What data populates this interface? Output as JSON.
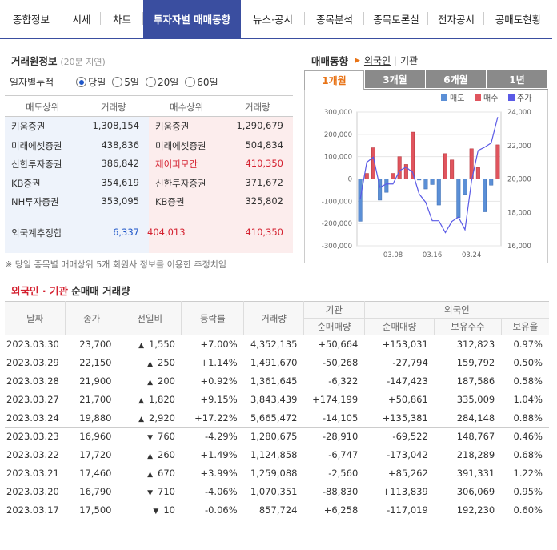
{
  "nav": {
    "tabs": [
      "종합정보",
      "시세",
      "차트",
      "투자자별 매매동향",
      "뉴스·공시",
      "종목분석",
      "종목토론실",
      "전자공시",
      "공매도현황"
    ],
    "active": 3
  },
  "brokers": {
    "title": "거래원정보",
    "delay": "(20분 지연)",
    "period_label": "일자별누적",
    "periods": [
      "당일",
      "5일",
      "20일",
      "60일"
    ],
    "selected_period": "당일",
    "headers": [
      "매도상위",
      "거래량",
      "매수상위",
      "거래량"
    ],
    "rows": [
      {
        "sell_name": "키움증권",
        "sell_vol": "1,308,154",
        "buy_name": "키움증권",
        "buy_vol": "1,290,679",
        "buy_highlight": false
      },
      {
        "sell_name": "미래에셋증권",
        "sell_vol": "438,836",
        "buy_name": "미래에셋증권",
        "buy_vol": "504,834",
        "buy_highlight": false
      },
      {
        "sell_name": "신한투자증권",
        "sell_vol": "386,842",
        "buy_name": "제이피모간",
        "buy_vol": "410,350",
        "buy_highlight": true
      },
      {
        "sell_name": "KB증권",
        "sell_vol": "354,619",
        "buy_name": "신한투자증권",
        "buy_vol": "371,672",
        "buy_highlight": false
      },
      {
        "sell_name": "NH투자증권",
        "sell_vol": "353,095",
        "buy_name": "KB증권",
        "buy_vol": "325,802",
        "buy_highlight": false
      }
    ],
    "foreign": {
      "label": "외국계추정합",
      "sell": "6,337",
      "net": "404,013",
      "buy": "410,350"
    },
    "note": "※ 당일 종목별 매매상위 5개 회원사 정보를 이용한 추정치임"
  },
  "trend": {
    "title": "매매동향",
    "filters": [
      "외국인",
      "기관"
    ],
    "active_filter": "외국인",
    "periods": [
      "1개월",
      "3개월",
      "6개월",
      "1년"
    ],
    "active_period": "1개월"
  },
  "chart_data": {
    "type": "bar",
    "legend": [
      "매도",
      "매수",
      "주가"
    ],
    "colors": {
      "sell": "#5b8fd6",
      "buy": "#e0555e",
      "price": "#5a5ae6"
    },
    "x_ticks": [
      "03.08",
      "03.16",
      "03.24"
    ],
    "y_left": {
      "ticks": [
        "300,000",
        "200,000",
        "100,000",
        "0",
        "-100,000",
        "-200,000",
        "-300,000"
      ],
      "range": [
        -300000,
        300000
      ]
    },
    "y_right": {
      "ticks": [
        "24,000",
        "22,000",
        "20,000",
        "18,000",
        "16,000"
      ],
      "range": [
        16000,
        24000
      ]
    },
    "categories": [
      "02.28",
      "03.02",
      "03.03",
      "03.06",
      "03.07",
      "03.08",
      "03.09",
      "03.10",
      "03.13",
      "03.14",
      "03.15",
      "03.16",
      "03.17",
      "03.20",
      "03.21",
      "03.22",
      "03.23",
      "03.24",
      "03.27",
      "03.28",
      "03.29",
      "03.30"
    ],
    "values": [
      -190000,
      25000,
      140000,
      -95000,
      -60000,
      25000,
      100000,
      65000,
      210000,
      -5000,
      -45000,
      -25000,
      -117019,
      113839,
      85262,
      -173042,
      -69522,
      135381,
      50861,
      -147423,
      -27794,
      153031
    ],
    "price": [
      18800,
      21000,
      21300,
      19500,
      19700,
      19700,
      20500,
      20700,
      20400,
      19100,
      18600,
      17500,
      17500,
      16790,
      17460,
      17720,
      16960,
      19880,
      21700,
      21900,
      22150,
      23700
    ]
  },
  "net": {
    "title_colored": "외국인 · 기관",
    "title_rest": " 순매매 거래량",
    "headers": {
      "date": "날짜",
      "close": "종가",
      "change": "전일비",
      "rate": "등락률",
      "volume": "거래량",
      "inst": "기관",
      "foreign": "외국인",
      "inst_net": "순매매량",
      "for_net": "순매매량",
      "hold": "보유주수",
      "ratio": "보유율"
    },
    "rows": [
      {
        "date": "2023.03.30",
        "close": "23,700",
        "dir": "up",
        "chg": "1,550",
        "rate": "+7.00%",
        "vol": "4,352,135",
        "inst": "+50,664",
        "for": "+153,031",
        "hold": "312,823",
        "ratio": "0.97%"
      },
      {
        "date": "2023.03.29",
        "close": "22,150",
        "dir": "up",
        "chg": "250",
        "rate": "+1.14%",
        "vol": "1,491,670",
        "inst": "-50,268",
        "for": "-27,794",
        "hold": "159,792",
        "ratio": "0.50%"
      },
      {
        "date": "2023.03.28",
        "close": "21,900",
        "dir": "up",
        "chg": "200",
        "rate": "+0.92%",
        "vol": "1,361,645",
        "inst": "-6,322",
        "for": "-147,423",
        "hold": "187,586",
        "ratio": "0.58%"
      },
      {
        "date": "2023.03.27",
        "close": "21,700",
        "dir": "up",
        "chg": "1,820",
        "rate": "+9.15%",
        "vol": "3,843,439",
        "inst": "+174,199",
        "for": "+50,861",
        "hold": "335,009",
        "ratio": "1.04%"
      },
      {
        "date": "2023.03.24",
        "close": "19,880",
        "dir": "up",
        "chg": "2,920",
        "rate": "+17.22%",
        "vol": "5,665,472",
        "inst": "-14,105",
        "for": "+135,381",
        "hold": "284,148",
        "ratio": "0.88%"
      },
      {
        "date": "2023.03.23",
        "close": "16,960",
        "dir": "dn",
        "chg": "760",
        "rate": "-4.29%",
        "vol": "1,280,675",
        "inst": "-28,910",
        "for": "-69,522",
        "hold": "148,767",
        "ratio": "0.46%"
      },
      {
        "date": "2023.03.22",
        "close": "17,720",
        "dir": "up",
        "chg": "260",
        "rate": "+1.49%",
        "vol": "1,124,858",
        "inst": "-6,747",
        "for": "-173,042",
        "hold": "218,289",
        "ratio": "0.68%"
      },
      {
        "date": "2023.03.21",
        "close": "17,460",
        "dir": "up",
        "chg": "670",
        "rate": "+3.99%",
        "vol": "1,259,088",
        "inst": "-2,560",
        "for": "+85,262",
        "hold": "391,331",
        "ratio": "1.22%"
      },
      {
        "date": "2023.03.20",
        "close": "16,790",
        "dir": "dn",
        "chg": "710",
        "rate": "-4.06%",
        "vol": "1,070,351",
        "inst": "-88,830",
        "for": "+113,839",
        "hold": "306,069",
        "ratio": "0.95%"
      },
      {
        "date": "2023.03.17",
        "close": "17,500",
        "dir": "dn",
        "chg": "10",
        "rate": "-0.06%",
        "vol": "857,724",
        "inst": "+6,258",
        "for": "-117,019",
        "hold": "192,230",
        "ratio": "0.60%"
      }
    ]
  }
}
